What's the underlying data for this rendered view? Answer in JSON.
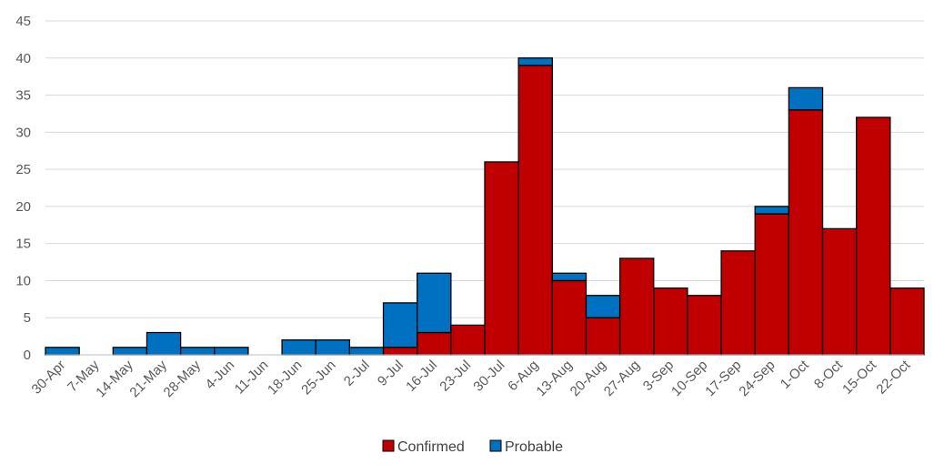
{
  "chart_data": {
    "type": "bar",
    "stacked": true,
    "categories": [
      "30-Apr",
      "7-May",
      "14-May",
      "21-May",
      "28-May",
      "4-Jun",
      "11-Jun",
      "18-Jun",
      "25-Jun",
      "2-Jul",
      "9-Jul",
      "16-Jul",
      "23-Jul",
      "30-Jul",
      "6-Aug",
      "13-Aug",
      "20-Aug",
      "27-Aug",
      "3-Sep",
      "10-Sep",
      "17-Sep",
      "24-Sep",
      "1-Oct",
      "8-Oct",
      "15-Oct",
      "22-Oct"
    ],
    "series": [
      {
        "name": "Confirmed",
        "color": "#c00000",
        "values": [
          0,
          0,
          0,
          0,
          0,
          0,
          0,
          0,
          0,
          0,
          1,
          3,
          4,
          26,
          39,
          10,
          5,
          13,
          9,
          8,
          14,
          19,
          33,
          17,
          32,
          9
        ]
      },
      {
        "name": "Probable",
        "color": "#0070c0",
        "values": [
          1,
          0,
          1,
          3,
          1,
          1,
          0,
          2,
          2,
          1,
          6,
          8,
          0,
          0,
          1,
          1,
          3,
          0,
          0,
          0,
          0,
          1,
          3,
          0,
          0,
          0
        ]
      }
    ],
    "ylim": [
      0,
      45
    ],
    "yticks": [
      0,
      5,
      10,
      15,
      20,
      25,
      30,
      35,
      40,
      45
    ],
    "grid": true,
    "legend": "bottom"
  }
}
